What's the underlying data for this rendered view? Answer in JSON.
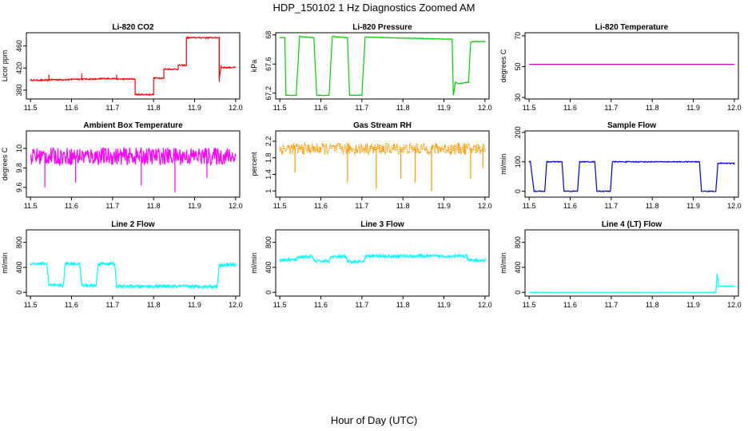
{
  "title": "HDP_150102  1 Hz Diagnostics Zoomed AM",
  "xlabel": "Hour of Day (UTC)",
  "chart_data": [
    {
      "type": "line",
      "title": "Li-820 CO2",
      "ylabel": "Licor ppm",
      "color": "#ff0000",
      "ylim": [
        364,
        484
      ],
      "yticks": [
        380,
        420,
        460
      ],
      "xlim": [
        11.49,
        12.01
      ],
      "xticks": [
        11.5,
        11.6,
        11.7,
        11.8,
        11.9,
        12.0
      ],
      "noise": 1.2,
      "series": [
        {
          "x": [
            11.5,
            11.545,
            11.545,
            11.6,
            11.6,
            11.67,
            11.67,
            11.71,
            11.71,
            11.755,
            11.755,
            11.8,
            11.8,
            11.825,
            11.825,
            11.86,
            11.86,
            11.88,
            11.88,
            11.96,
            11.96,
            11.965,
            11.965,
            12.0
          ],
          "y": [
            398,
            398,
            399,
            399,
            400,
            400,
            401,
            401,
            400,
            400,
            372,
            372,
            402,
            402,
            418,
            418,
            425,
            425,
            475,
            475,
            401,
            425,
            421,
            421
          ]
        }
      ],
      "spikes": [
        [
          11.545,
          408
        ],
        [
          11.625,
          410
        ],
        [
          11.71,
          408
        ],
        [
          11.96,
          395
        ]
      ]
    },
    {
      "type": "line",
      "title": "Li-820 Pressure",
      "ylabel": "kPa",
      "color": "#00cc00",
      "ylim": [
        67.12,
        68.03
      ],
      "yticks": [
        67.2,
        67.6,
        68.0
      ],
      "xlim": [
        11.49,
        12.01
      ],
      "xticks": [
        11.5,
        11.6,
        11.7,
        11.8,
        11.9,
        12.0
      ],
      "noise": 0.004,
      "series": [
        {
          "x": [
            11.5,
            11.512,
            11.515,
            11.54,
            11.548,
            11.583,
            11.59,
            11.62,
            11.628,
            11.665,
            11.67,
            11.7,
            11.708,
            11.92,
            11.923,
            11.928,
            11.935,
            11.96,
            11.965,
            11.975,
            12.0
          ],
          "y": [
            67.96,
            67.96,
            67.17,
            67.17,
            67.98,
            67.96,
            67.17,
            67.17,
            67.98,
            67.96,
            67.17,
            67.17,
            67.97,
            67.94,
            67.17,
            67.35,
            67.33,
            67.35,
            67.9,
            67.91,
            67.91
          ]
        }
      ],
      "spikes": []
    },
    {
      "type": "line",
      "title": "Li-820 Temperature",
      "ylabel": "degrees C",
      "color": "#cc00cc",
      "ylim": [
        29,
        72
      ],
      "yticks": [
        30,
        50,
        70
      ],
      "xlim": [
        11.49,
        12.01
      ],
      "xticks": [
        11.5,
        11.6,
        11.7,
        11.8,
        11.9,
        12.0
      ],
      "noise": 0,
      "series": [
        {
          "x": [
            11.5,
            12.0
          ],
          "y": [
            51.5,
            51.5
          ]
        }
      ],
      "spikes": []
    },
    {
      "type": "line",
      "title": "Ambient Box Temperature",
      "ylabel": "degrees C",
      "color": "#ff00ff",
      "ylim": [
        9.5,
        10.18
      ],
      "yticks": [
        9.6,
        9.8,
        10.0
      ],
      "xlim": [
        11.49,
        12.01
      ],
      "xticks": [
        11.5,
        11.6,
        11.7,
        11.8,
        11.9,
        12.0
      ],
      "noise": 0.09,
      "series": [
        {
          "x": [
            11.5,
            12.0
          ],
          "y": [
            9.92,
            9.92
          ]
        }
      ],
      "spikes": [
        [
          11.535,
          9.6
        ],
        [
          11.61,
          9.65
        ],
        [
          11.77,
          9.62
        ],
        [
          11.852,
          9.55
        ],
        [
          11.93,
          9.7
        ]
      ]
    },
    {
      "type": "scatter",
      "title": "Gas Stream RH",
      "ylabel": "percent",
      "color": "#ff9900",
      "ylim": [
        0.85,
        2.45
      ],
      "yticks": [
        1.0,
        1.4,
        1.8,
        2.2
      ],
      "xlim": [
        11.49,
        12.01
      ],
      "xticks": [
        11.5,
        11.6,
        11.7,
        11.8,
        11.9,
        12.0
      ],
      "noise": 0.14,
      "series": [
        {
          "x": [
            11.5,
            12.0
          ],
          "y": [
            2.02,
            2.02
          ]
        }
      ],
      "spikes": [
        [
          11.537,
          1.45
        ],
        [
          11.665,
          1.2
        ],
        [
          11.735,
          1.05
        ],
        [
          11.795,
          1.3
        ],
        [
          11.83,
          1.2
        ],
        [
          11.87,
          1.0
        ],
        [
          11.965,
          1.3
        ],
        [
          11.995,
          1.55
        ]
      ]
    },
    {
      "type": "line",
      "title": "Sample Flow",
      "ylabel": "ml/min",
      "color": "#0000cc",
      "ylim": [
        -20,
        205
      ],
      "yticks": [
        0,
        100,
        200
      ],
      "xlim": [
        11.49,
        12.01
      ],
      "xticks": [
        11.5,
        11.6,
        11.7,
        11.8,
        11.9,
        12.0
      ],
      "noise": 1.5,
      "series": [
        {
          "x": [
            11.5,
            11.503,
            11.512,
            11.538,
            11.543,
            11.58,
            11.585,
            11.618,
            11.623,
            11.66,
            11.665,
            11.698,
            11.703,
            11.915,
            11.92,
            11.955,
            11.96,
            12.0
          ],
          "y": [
            100,
            100,
            0,
            0,
            100,
            100,
            0,
            0,
            100,
            100,
            0,
            0,
            100,
            100,
            0,
            0,
            95,
            95
          ]
        }
      ],
      "spikes": []
    },
    {
      "type": "line",
      "title": "Line 2 Flow",
      "ylabel": "ml/min",
      "color": "#00ffff",
      "ylim": [
        -60,
        1000
      ],
      "yticks": [
        0,
        400,
        800
      ],
      "xlim": [
        11.49,
        12.01
      ],
      "xticks": [
        11.5,
        11.6,
        11.7,
        11.8,
        11.9,
        12.0
      ],
      "noise": 25,
      "series": [
        {
          "x": [
            11.5,
            11.54,
            11.545,
            11.58,
            11.585,
            11.62,
            11.625,
            11.66,
            11.665,
            11.705,
            11.71,
            11.955,
            11.96,
            12.0
          ],
          "y": [
            460,
            460,
            110,
            110,
            460,
            460,
            110,
            110,
            460,
            460,
            95,
            95,
            440,
            440
          ]
        }
      ],
      "spikes": []
    },
    {
      "type": "line",
      "title": "Line 3 Flow",
      "ylabel": "ml/min",
      "color": "#00ffff",
      "ylim": [
        -60,
        1000
      ],
      "yticks": [
        0,
        400,
        800
      ],
      "xlim": [
        11.49,
        12.01
      ],
      "xticks": [
        11.5,
        11.6,
        11.7,
        11.8,
        11.9,
        12.0
      ],
      "noise": 25,
      "series": [
        {
          "x": [
            11.5,
            11.54,
            11.545,
            11.58,
            11.585,
            11.62,
            11.625,
            11.66,
            11.665,
            11.705,
            11.71,
            11.955,
            11.96,
            12.0
          ],
          "y": [
            520,
            520,
            570,
            570,
            500,
            500,
            570,
            570,
            490,
            490,
            580,
            580,
            510,
            510
          ]
        }
      ],
      "spikes": []
    },
    {
      "type": "line",
      "title": "Line 4 (LT) Flow",
      "ylabel": "ml/min",
      "color": "#00ffff",
      "ylim": [
        -60,
        1000
      ],
      "yticks": [
        0,
        400,
        800
      ],
      "xlim": [
        11.49,
        12.01
      ],
      "xticks": [
        11.5,
        11.6,
        11.7,
        11.8,
        11.9,
        12.0
      ],
      "noise": 2,
      "series": [
        {
          "x": [
            11.5,
            11.955,
            11.958,
            11.962,
            11.965,
            12.0
          ],
          "y": [
            0,
            0,
            300,
            100,
            100,
            100
          ]
        }
      ],
      "spikes": []
    }
  ]
}
